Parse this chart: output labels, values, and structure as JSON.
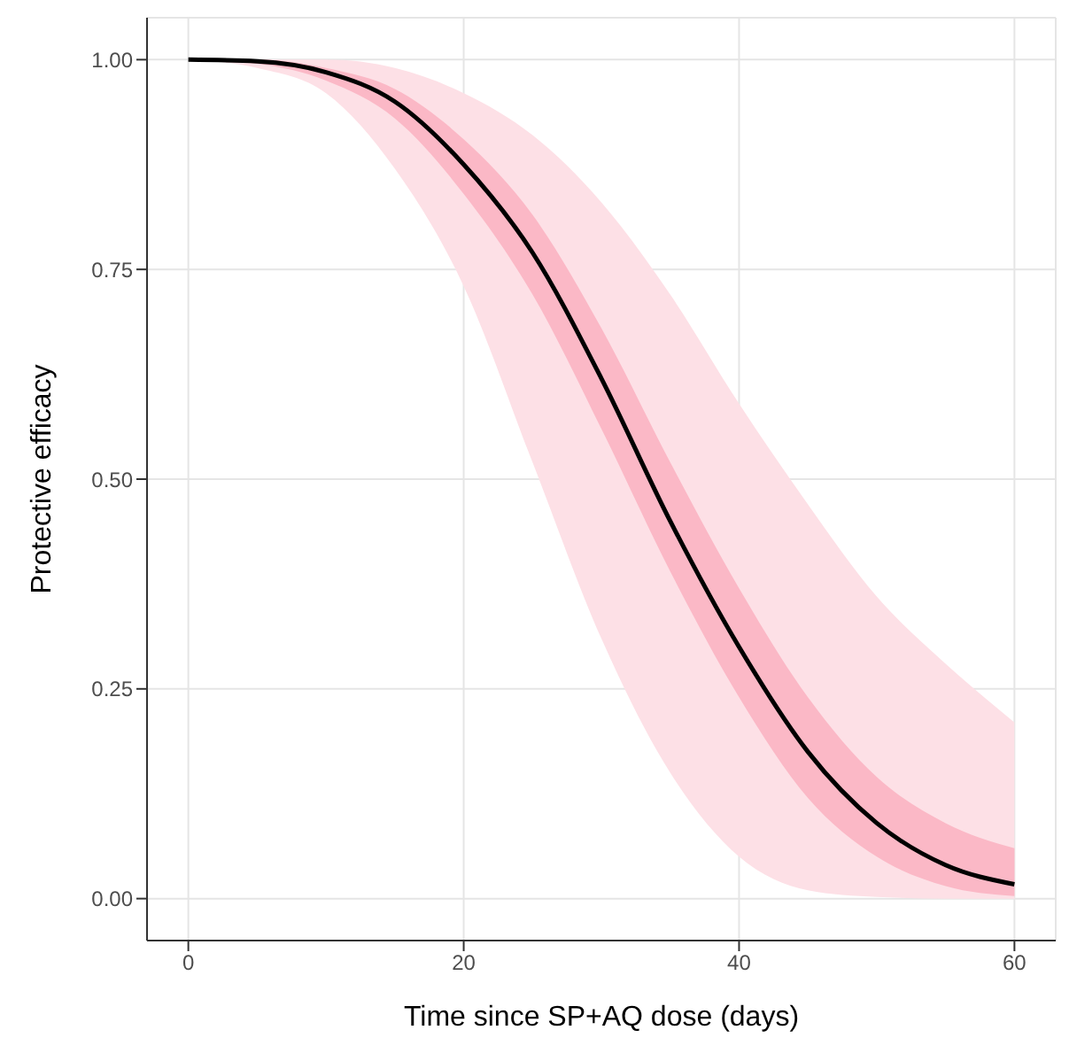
{
  "chart_data": {
    "type": "line",
    "xlabel": "Time since SP+AQ dose (days)",
    "ylabel": "Protective efficacy",
    "x": [
      0,
      5,
      10,
      15,
      20,
      25,
      30,
      35,
      40,
      45,
      50,
      55,
      60
    ],
    "series": [
      {
        "color": "#000000",
        "values": [
          1.0,
          0.998,
          0.985,
          0.95,
          0.875,
          0.77,
          0.62,
          0.45,
          0.3,
          0.175,
          0.09,
          0.04,
          0.017
        ]
      },
      {
        "color": "#fbb8c6",
        "values": [
          null,
          null,
          null,
          null,
          null,
          null,
          null,
          null,
          null,
          null,
          null,
          null,
          null
        ],
        "lower": [
          1.0,
          0.995,
          0.975,
          0.93,
          0.84,
          0.72,
          0.56,
          0.39,
          0.24,
          0.12,
          0.05,
          0.015,
          0.003
        ],
        "upper": [
          1.0,
          1.0,
          0.99,
          0.965,
          0.905,
          0.815,
          0.68,
          0.52,
          0.37,
          0.24,
          0.145,
          0.09,
          0.06
        ]
      },
      {
        "color": "#fde0e6",
        "values": [
          null,
          null,
          null,
          null,
          null,
          null,
          null,
          null,
          null,
          null,
          null,
          null,
          null
        ],
        "lower": [
          1.0,
          0.99,
          0.96,
          0.87,
          0.73,
          0.52,
          0.31,
          0.15,
          0.05,
          0.01,
          0.002,
          0,
          0
        ],
        "upper": [
          1.0,
          1.0,
          1.0,
          0.99,
          0.96,
          0.91,
          0.83,
          0.72,
          0.59,
          0.47,
          0.36,
          0.28,
          0.21
        ]
      }
    ],
    "xlim": [
      -3,
      63
    ],
    "xticks": [
      0,
      20,
      40,
      60
    ],
    "ylim": [
      -0.05,
      1.05
    ],
    "yticks": [
      {
        "value": 0,
        "label": "0.00"
      },
      {
        "value": 0.25,
        "label": "0.25"
      },
      {
        "value": 0.5,
        "label": "0.50"
      },
      {
        "value": 0.75,
        "label": "0.75"
      },
      {
        "value": 1,
        "label": "1.00"
      }
    ],
    "grid": true,
    "legend": false,
    "marker": "none",
    "line_style": "solid"
  }
}
